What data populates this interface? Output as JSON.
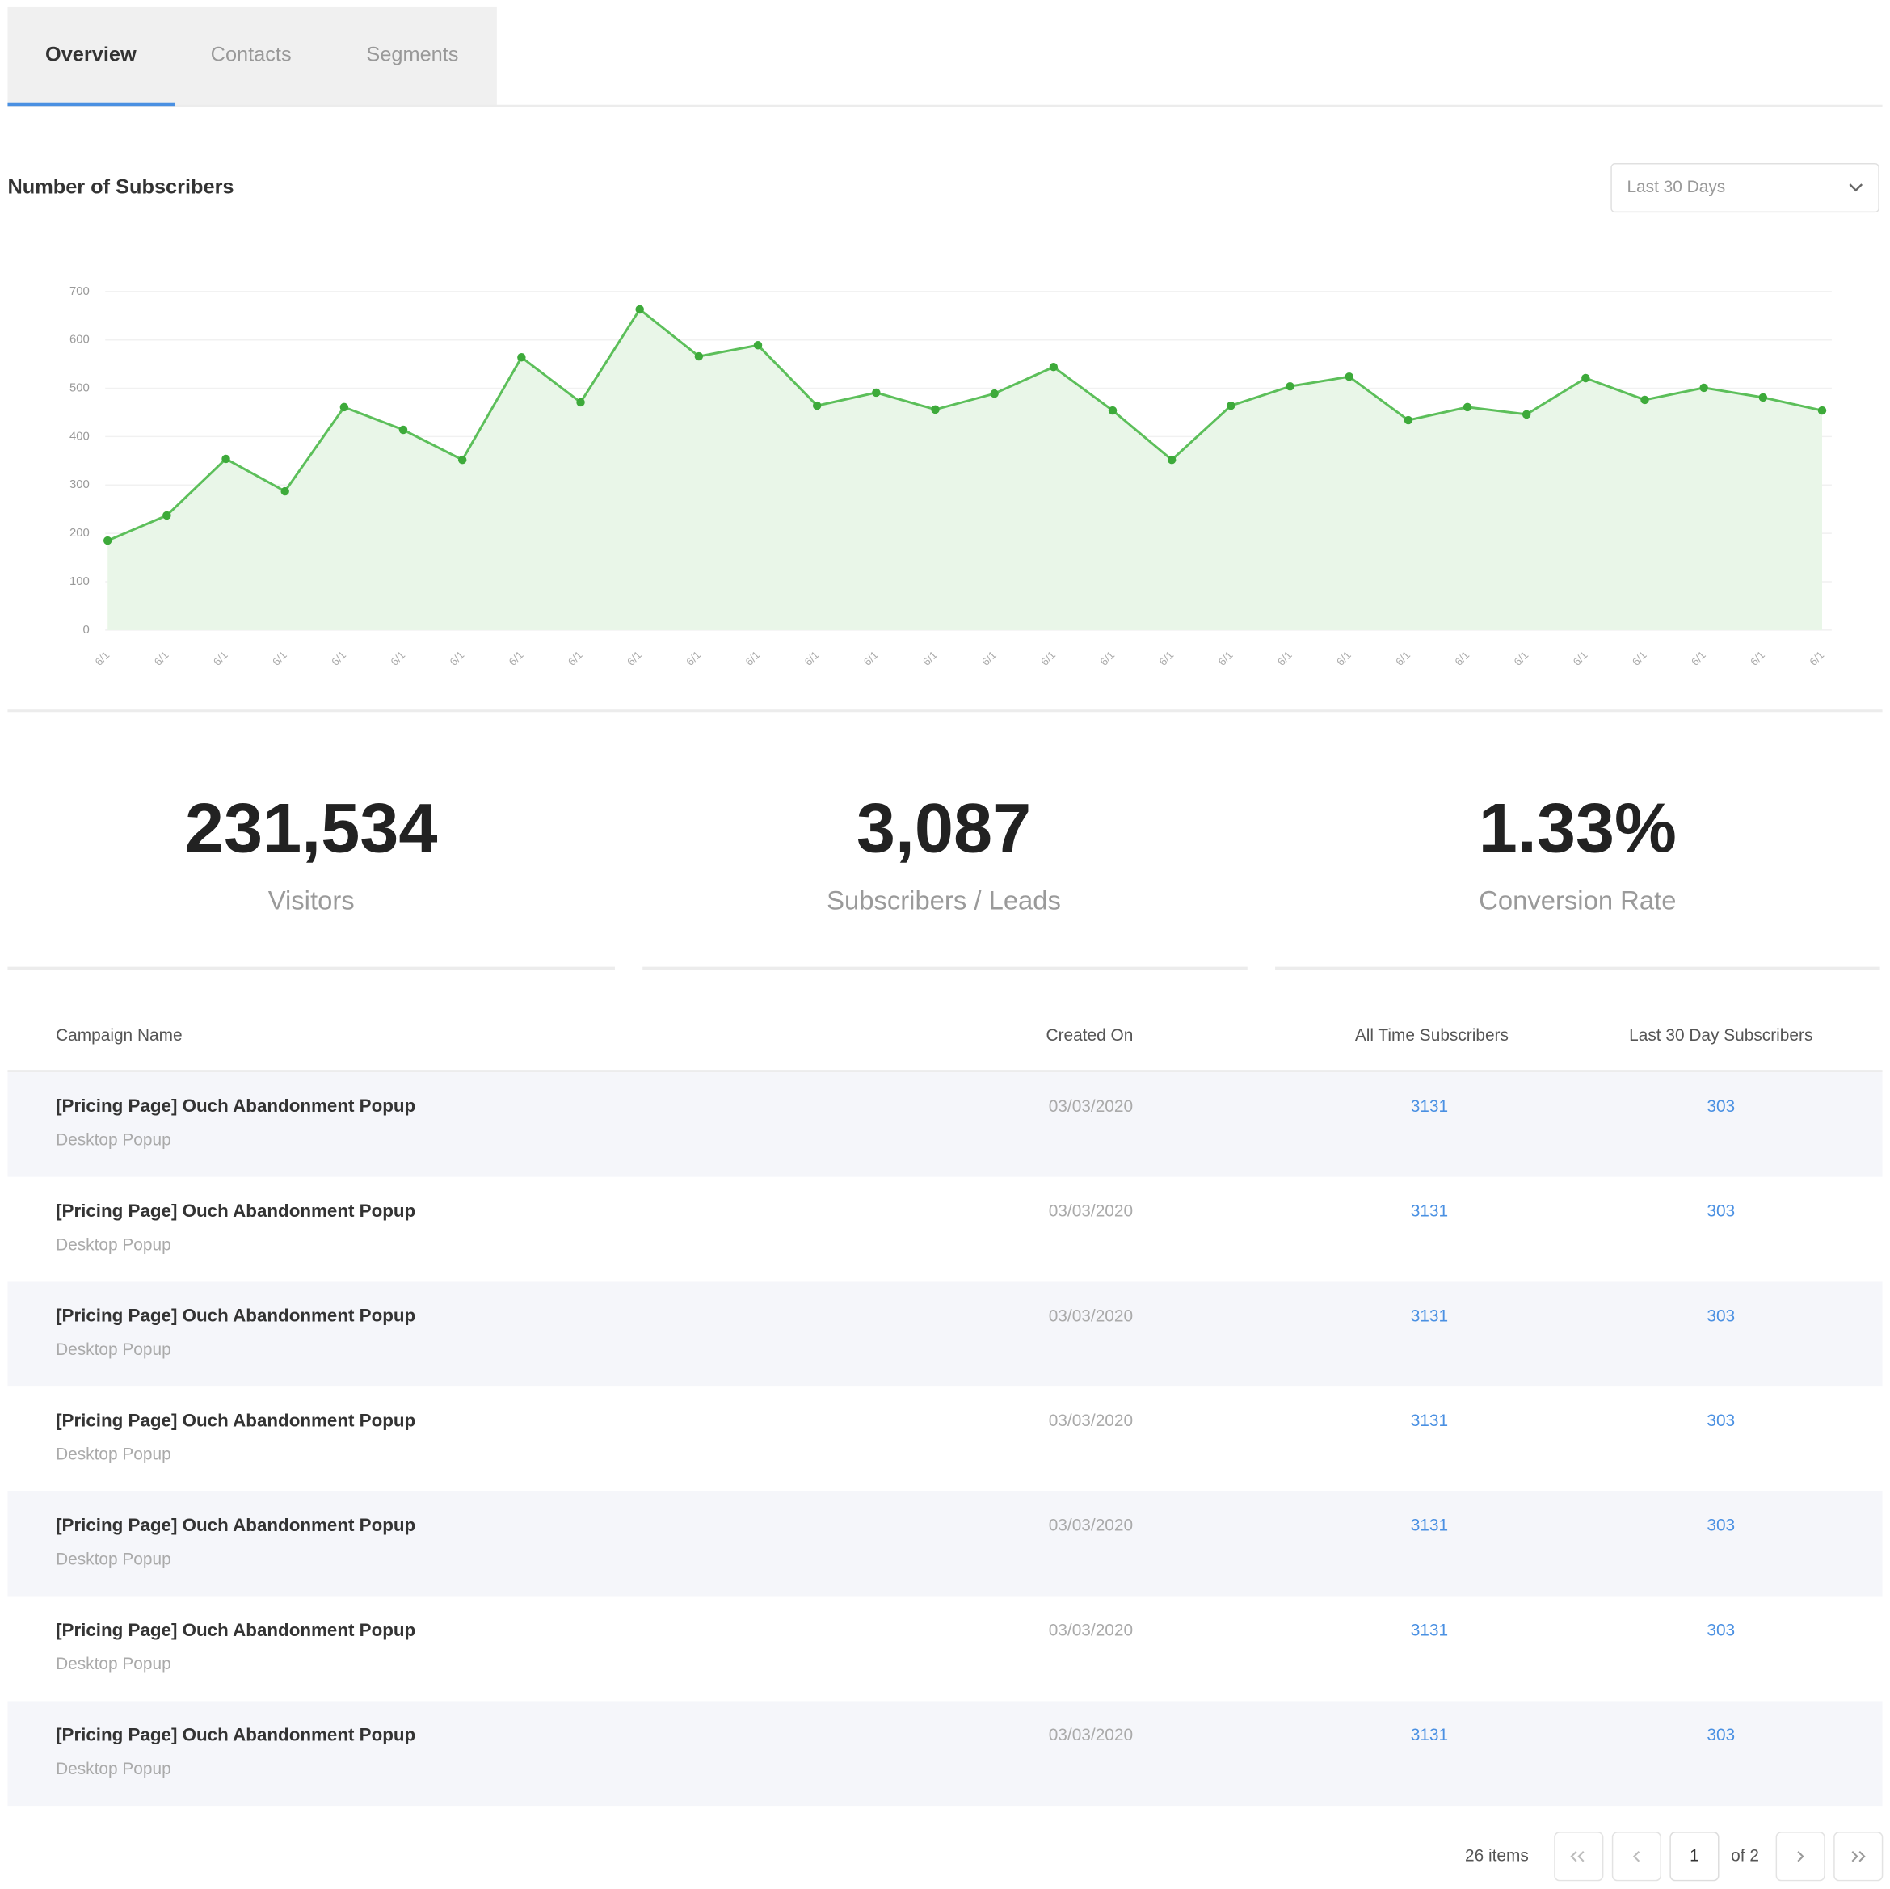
{
  "tabs": [
    "Overview",
    "Contacts",
    "Segments"
  ],
  "range_selector": "Last 30 Days",
  "chart_data": {
    "type": "line",
    "title": "Number of Subscribers",
    "categories": [
      "6/1",
      "6/1",
      "6/1",
      "6/1",
      "6/1",
      "6/1",
      "6/1",
      "6/1",
      "6/1",
      "6/1",
      "6/1",
      "6/1",
      "6/1",
      "6/1",
      "6/1",
      "6/1",
      "6/1",
      "6/1",
      "6/1",
      "6/1",
      "6/1",
      "6/1",
      "6/1",
      "6/1",
      "6/1",
      "6/1",
      "6/1",
      "6/1",
      "6/1",
      "6/1"
    ],
    "values": [
      185,
      237,
      354,
      287,
      461,
      414,
      352,
      564,
      471,
      663,
      566,
      589,
      464,
      491,
      456,
      489,
      544,
      454,
      352,
      464,
      504,
      524,
      434,
      461,
      446,
      521,
      476,
      501,
      481,
      454
    ],
    "color": "#5cbf5a",
    "fill": "#e9f6e8",
    "ylim": [
      0,
      700
    ],
    "yticks": [
      0,
      100,
      200,
      300,
      400,
      500,
      600,
      700
    ],
    "grid": true
  },
  "stats": [
    {
      "value": "231,534",
      "label": "Visitors"
    },
    {
      "value": "3,087",
      "label": "Subscribers / Leads"
    },
    {
      "value": "1.33%",
      "label": "Conversion Rate"
    }
  ],
  "table": {
    "columns": [
      "Campaign Name",
      "Created On",
      "All Time Subscribers",
      "Last 30 Day Subscribers"
    ],
    "rows": [
      {
        "name": "[Pricing Page] Ouch Abandonment Popup",
        "type": "Desktop Popup",
        "created": "03/03/2020",
        "all_time": 3131,
        "last_30": 303
      },
      {
        "name": "[Pricing Page] Ouch Abandonment Popup",
        "type": "Desktop Popup",
        "created": "03/03/2020",
        "all_time": 3131,
        "last_30": 303
      },
      {
        "name": "[Pricing Page] Ouch Abandonment Popup",
        "type": "Desktop Popup",
        "created": "03/03/2020",
        "all_time": 3131,
        "last_30": 303
      },
      {
        "name": "[Pricing Page] Ouch Abandonment Popup",
        "type": "Desktop Popup",
        "created": "03/03/2020",
        "all_time": 3131,
        "last_30": 303
      },
      {
        "name": "[Pricing Page] Ouch Abandonment Popup",
        "type": "Desktop Popup",
        "created": "03/03/2020",
        "all_time": 3131,
        "last_30": 303
      },
      {
        "name": "[Pricing Page] Ouch Abandonment Popup",
        "type": "Desktop Popup",
        "created": "03/03/2020",
        "all_time": 3131,
        "last_30": 303
      },
      {
        "name": "[Pricing Page] Ouch Abandonment Popup",
        "type": "Desktop Popup",
        "created": "03/03/2020",
        "all_time": 3131,
        "last_30": 303
      }
    ]
  },
  "pagination": {
    "items": "26 items",
    "page": 1,
    "of": "of 2"
  }
}
